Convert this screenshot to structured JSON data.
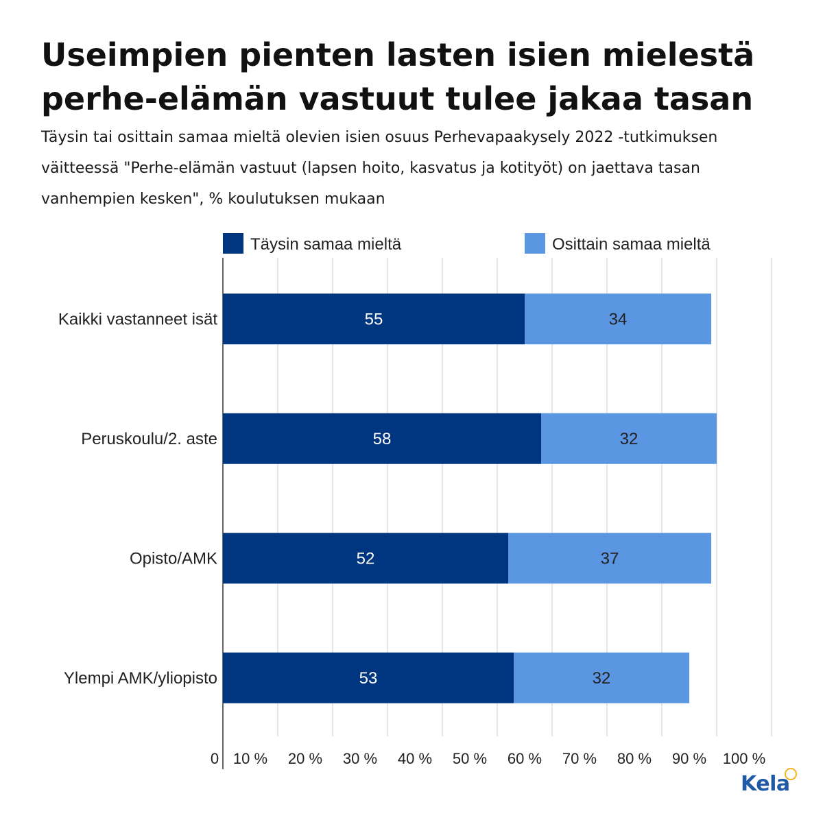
{
  "title": "Useimpien pienten lasten isien mielestä perhe-elämän vastuut tulee jakaa tasan",
  "subtitle": "Täysin tai osittain samaa mieltä olevien isien osuus Perhevapaakysely 2022 -tutkimuksen väitteessä \"Perhe-elämän vastuut (lapsen hoito, kasvatus ja kotityöt) on jaettava tasan vanhempien kesken\", % koulutuksen mukaan",
  "logo": {
    "text": "Kela"
  },
  "chart_data": {
    "type": "bar",
    "orientation": "horizontal",
    "stacked": true,
    "categories": [
      "Kaikki vastanneet isät",
      "Peruskoulu/2. aste",
      "Opisto/AMK",
      "Ylempi AMK/yliopisto"
    ],
    "series": [
      {
        "name": "Täysin samaa mieltä",
        "values": [
          55,
          58,
          52,
          53
        ],
        "color": "#00357f"
      },
      {
        "name": "Osittain samaa mieltä",
        "values": [
          34,
          32,
          37,
          32
        ],
        "color": "#5b96e2"
      }
    ],
    "xlim": [
      0,
      100
    ],
    "xticks": [
      0,
      10,
      20,
      30,
      40,
      50,
      60,
      70,
      80,
      90,
      100
    ],
    "xtick_labels": [
      "0",
      "10 %",
      "20 %",
      "30 %",
      "40 %",
      "50 %",
      "60 %",
      "70 %",
      "80 %",
      "90 %",
      "100 %"
    ],
    "grid": true,
    "legend": "top",
    "colors": {
      "grid": "#cccccc",
      "axis": "#333333",
      "label_dark": "#ffffff",
      "label_light": "#222222"
    }
  }
}
